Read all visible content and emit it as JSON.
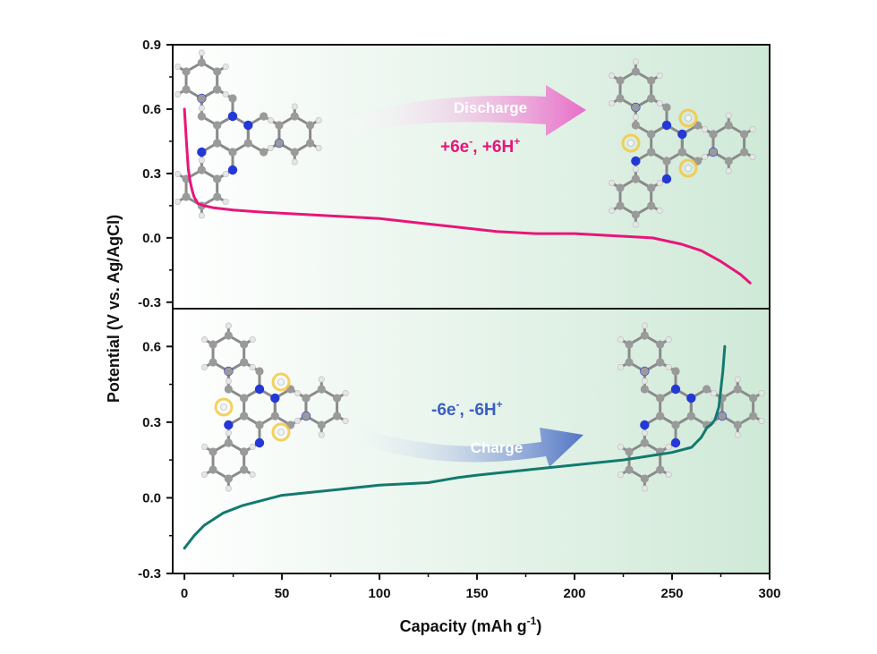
{
  "chart_data": [
    {
      "type": "line",
      "panel": "top",
      "xlabel": "Capacity (mAh g-1)",
      "ylabel": "Potential (V vs. Ag/AgCl)",
      "xlim": [
        -6,
        300
      ],
      "ylim": [
        -0.33,
        0.9
      ],
      "xticks": [
        0,
        50,
        100,
        150,
        200,
        250,
        300
      ],
      "yticks": [
        -0.3,
        0.0,
        0.3,
        0.6,
        0.9
      ],
      "grid": false,
      "legend": "none",
      "series": [
        {
          "color": "#e8157a",
          "x": [
            0,
            1,
            2,
            3,
            4,
            5,
            7,
            10,
            15,
            25,
            40,
            60,
            80,
            100,
            120,
            140,
            160,
            180,
            200,
            220,
            240,
            255,
            265,
            275,
            285,
            290
          ],
          "y": [
            0.6,
            0.45,
            0.32,
            0.26,
            0.22,
            0.19,
            0.16,
            0.15,
            0.14,
            0.13,
            0.12,
            0.11,
            0.1,
            0.09,
            0.07,
            0.05,
            0.03,
            0.02,
            0.02,
            0.01,
            0.0,
            -0.03,
            -0.06,
            -0.11,
            -0.17,
            -0.21
          ]
        }
      ],
      "annotations": {
        "arrow_label": "Discharge",
        "reaction_main": "+6e",
        "reaction_sup1": "-",
        "reaction_mid": ", +6H",
        "reaction_sup2": "+"
      }
    },
    {
      "type": "line",
      "panel": "bottom",
      "xlabel": "Capacity (mAh g-1)",
      "ylabel": "Potential (V vs. Ag/AgCl)",
      "xlim": [
        -6,
        300
      ],
      "ylim": [
        -0.3,
        0.75
      ],
      "xticks": [
        0,
        50,
        100,
        150,
        200,
        250,
        300
      ],
      "yticks": [
        -0.3,
        0.0,
        0.3,
        0.6
      ],
      "grid": false,
      "legend": "none",
      "series": [
        {
          "color": "#127a6e",
          "x": [
            0,
            5,
            10,
            20,
            30,
            50,
            75,
            100,
            125,
            140,
            150,
            175,
            200,
            225,
            250,
            260,
            265,
            268,
            270,
            272,
            274,
            276,
            277
          ],
          "y": [
            -0.2,
            -0.15,
            -0.11,
            -0.06,
            -0.03,
            0.01,
            0.03,
            0.05,
            0.06,
            0.08,
            0.09,
            0.11,
            0.13,
            0.15,
            0.18,
            0.2,
            0.24,
            0.28,
            0.29,
            0.31,
            0.36,
            0.5,
            0.6
          ]
        }
      ],
      "annotations": {
        "arrow_label": "Charge",
        "reaction_main": "-6e",
        "reaction_sup1": "-",
        "reaction_mid": ", -6H",
        "reaction_sup2": "+"
      }
    }
  ],
  "axes_text": {
    "ylabel": "Potential (V vs. Ag/AgCl)",
    "xlabel_main": "Capacity (mAh g",
    "xlabel_sup": "-1",
    "xlabel_end": ")"
  },
  "colors": {
    "discharge_curve": "#e8157a",
    "charge_curve": "#127a6e",
    "discharge_arrow": "#e966c7",
    "charge_arrow": "#4a6fc4",
    "reaction_top": "#e8157a",
    "reaction_bottom": "#3b5fc0",
    "carbon": "#9a9a9a",
    "nitrogen": "#2438d6",
    "hydrogen": "#e6e6e6",
    "h_halo": "#f5c842",
    "background_gradient_end": "#cfe9d7"
  },
  "icons": [
    "molecule-hatn-oxidized",
    "molecule-hatn-reduced"
  ]
}
